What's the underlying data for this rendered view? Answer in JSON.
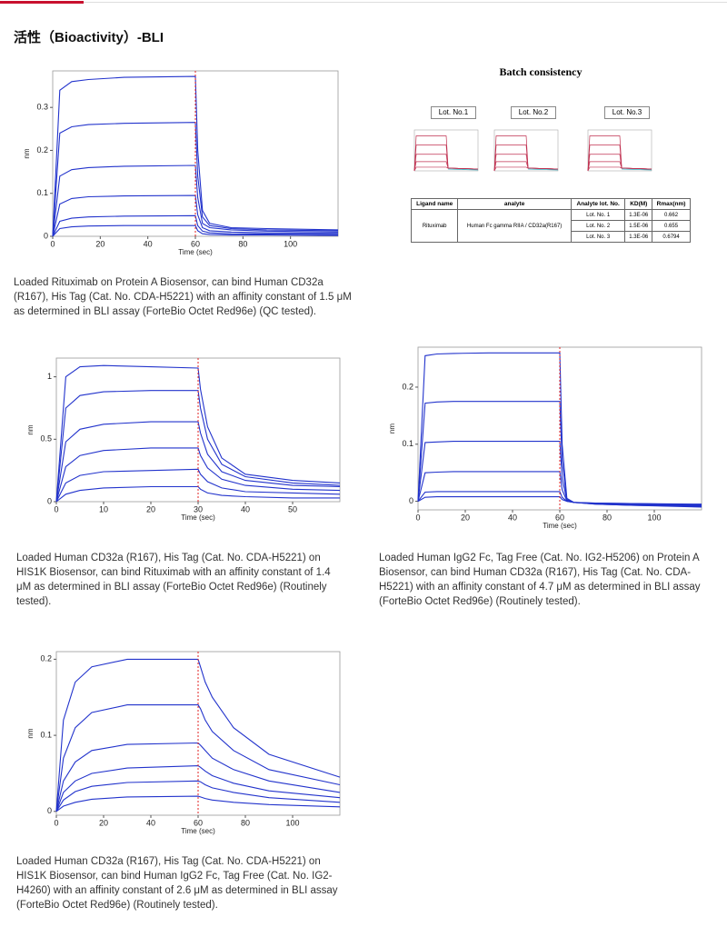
{
  "header": {
    "title": "活性（Bioactivity）-BLI"
  },
  "chart_data": [
    {
      "type": "line",
      "xlabel": "Time (sec)",
      "ylabel": "nm",
      "xlim": [
        0,
        120
      ],
      "ylim": [
        0,
        0.385
      ],
      "xticks": [
        0,
        20,
        40,
        60,
        80,
        100
      ],
      "yticks": [
        0,
        0.1,
        0.2,
        0.3
      ],
      "switch_x": 60,
      "color": "#2233cc",
      "x": [
        0,
        3,
        8,
        15,
        30,
        60,
        61,
        63,
        66,
        75,
        90,
        120
      ],
      "series": [
        {
          "values": [
            0,
            0.34,
            0.36,
            0.365,
            0.37,
            0.372,
            0.2,
            0.06,
            0.03,
            0.02,
            0.018,
            0.015
          ]
        },
        {
          "values": [
            0,
            0.24,
            0.255,
            0.26,
            0.263,
            0.265,
            0.14,
            0.045,
            0.025,
            0.018,
            0.015,
            0.013
          ]
        },
        {
          "values": [
            0,
            0.14,
            0.155,
            0.16,
            0.163,
            0.165,
            0.09,
            0.03,
            0.02,
            0.015,
            0.012,
            0.01
          ]
        },
        {
          "values": [
            0,
            0.075,
            0.088,
            0.092,
            0.094,
            0.095,
            0.05,
            0.02,
            0.013,
            0.01,
            0.008,
            0.007
          ]
        },
        {
          "values": [
            0,
            0.035,
            0.042,
            0.045,
            0.047,
            0.048,
            0.025,
            0.012,
            0.008,
            0.006,
            0.005,
            0.004
          ]
        },
        {
          "values": [
            0,
            0.018,
            0.022,
            0.024,
            0.025,
            0.025,
            0.013,
            0.006,
            0.004,
            0.003,
            0.003,
            0.002
          ]
        }
      ],
      "caption": "Loaded Rituximab on Protein A Biosensor, can bind Human CD32a (R167), His Tag (Cat. No. CDA-H5221) with an affinity constant of 1.5 μM as determined in BLI assay (ForteBio Octet Red96e) (QC tested)."
    },
    {
      "type": "line",
      "xlabel": "Time (sec)",
      "ylabel": "nm",
      "xlim": [
        0,
        60
      ],
      "ylim": [
        0,
        1.15
      ],
      "xticks": [
        0,
        10,
        20,
        30,
        40,
        50
      ],
      "yticks": [
        0,
        0.5,
        1
      ],
      "switch_x": 30,
      "color": "#2233cc",
      "x": [
        0,
        2,
        5,
        10,
        20,
        30,
        30.5,
        32,
        35,
        40,
        50,
        60
      ],
      "series": [
        {
          "values": [
            0,
            1.0,
            1.08,
            1.09,
            1.08,
            1.07,
            0.9,
            0.6,
            0.35,
            0.22,
            0.17,
            0.15
          ]
        },
        {
          "values": [
            0,
            0.75,
            0.85,
            0.88,
            0.89,
            0.89,
            0.75,
            0.5,
            0.3,
            0.2,
            0.15,
            0.13
          ]
        },
        {
          "values": [
            0,
            0.48,
            0.58,
            0.62,
            0.64,
            0.64,
            0.55,
            0.38,
            0.24,
            0.17,
            0.13,
            0.12
          ]
        },
        {
          "values": [
            0,
            0.28,
            0.37,
            0.41,
            0.43,
            0.43,
            0.37,
            0.27,
            0.18,
            0.13,
            0.1,
            0.09
          ]
        },
        {
          "values": [
            0,
            0.15,
            0.21,
            0.24,
            0.25,
            0.26,
            0.22,
            0.16,
            0.11,
            0.08,
            0.07,
            0.06
          ]
        },
        {
          "values": [
            0,
            0.06,
            0.09,
            0.11,
            0.12,
            0.12,
            0.1,
            0.07,
            0.05,
            0.04,
            0.03,
            0.03
          ]
        }
      ],
      "caption": "Loaded Human CD32a (R167), His Tag (Cat. No. CDA-H5221) on HIS1K Biosensor, can bind Rituximab with an affinity constant of 1.4 μM as determined in BLI assay (ForteBio Octet Red96e) (Routinely tested)."
    },
    {
      "type": "line",
      "xlabel": "Time (sec)",
      "ylabel": "nm",
      "xlim": [
        0,
        120
      ],
      "ylim": [
        -0.015,
        0.27
      ],
      "xticks": [
        0,
        20,
        40,
        60,
        80,
        100
      ],
      "yticks": [
        0,
        0.1,
        0.2
      ],
      "switch_x": 60,
      "color": "#2233cc",
      "x": [
        0,
        3,
        8,
        15,
        30,
        60,
        61,
        63,
        66,
        75,
        90,
        120
      ],
      "series": [
        {
          "values": [
            0,
            0.255,
            0.258,
            0.259,
            0.26,
            0.26,
            0.1,
            0.005,
            -0.002,
            -0.005,
            -0.007,
            -0.01
          ]
        },
        {
          "values": [
            0,
            0.172,
            0.174,
            0.175,
            0.175,
            0.175,
            0.07,
            0.003,
            -0.002,
            -0.005,
            -0.007,
            -0.009
          ]
        },
        {
          "values": [
            0,
            0.103,
            0.104,
            0.105,
            0.105,
            0.105,
            0.04,
            0.002,
            -0.002,
            -0.004,
            -0.006,
            -0.008
          ]
        },
        {
          "values": [
            0,
            0.05,
            0.051,
            0.052,
            0.052,
            0.052,
            0.02,
            0.001,
            -0.002,
            -0.004,
            -0.005,
            -0.007
          ]
        },
        {
          "values": [
            0,
            0.016,
            0.017,
            0.017,
            0.017,
            0.017,
            0.007,
            0,
            -0.002,
            -0.003,
            -0.004,
            -0.006
          ]
        },
        {
          "values": [
            0,
            0.007,
            0.008,
            0.008,
            0.008,
            0.008,
            0.003,
            0,
            -0.002,
            -0.003,
            -0.004,
            -0.005
          ]
        }
      ],
      "caption": "Loaded Human IgG2 Fc, Tag Free (Cat. No. IG2-H5206) on Protein A Biosensor, can bind Human CD32a (R167), His Tag (Cat. No. CDA-H5221) with an affinity constant of 4.7 μM as determined in BLI assay (ForteBio Octet Red96e) (Routinely tested)."
    },
    {
      "type": "line",
      "xlabel": "Time (sec)",
      "ylabel": "nm",
      "xlim": [
        0,
        120
      ],
      "ylim": [
        -0.005,
        0.21
      ],
      "xticks": [
        0,
        20,
        40,
        60,
        80,
        100
      ],
      "yticks": [
        0,
        0.1,
        0.2
      ],
      "switch_x": 60,
      "color": "#2233cc",
      "x": [
        0,
        3,
        8,
        15,
        30,
        60,
        61,
        63,
        66,
        75,
        90,
        120
      ],
      "series": [
        {
          "values": [
            0,
            0.12,
            0.17,
            0.19,
            0.2,
            0.2,
            0.19,
            0.17,
            0.15,
            0.11,
            0.075,
            0.045
          ]
        },
        {
          "values": [
            0,
            0.07,
            0.11,
            0.13,
            0.14,
            0.14,
            0.135,
            0.12,
            0.105,
            0.08,
            0.055,
            0.035
          ]
        },
        {
          "values": [
            0,
            0.04,
            0.065,
            0.08,
            0.088,
            0.09,
            0.087,
            0.08,
            0.07,
            0.055,
            0.04,
            0.025
          ]
        },
        {
          "values": [
            0,
            0.025,
            0.04,
            0.05,
            0.057,
            0.06,
            0.058,
            0.053,
            0.047,
            0.037,
            0.027,
            0.018
          ]
        },
        {
          "values": [
            0,
            0.015,
            0.026,
            0.033,
            0.038,
            0.04,
            0.039,
            0.035,
            0.031,
            0.025,
            0.018,
            0.012
          ]
        },
        {
          "values": [
            0,
            0.007,
            0.012,
            0.016,
            0.019,
            0.02,
            0.019,
            0.017,
            0.015,
            0.012,
            0.009,
            0.006
          ]
        }
      ],
      "caption": "Loaded Human CD32a (R167), His Tag (Cat. No. CDA-H5221) on HIS1K Biosensor, can bind Human IgG2 Fc, Tag Free (Cat. No. IG2-H4260) with an affinity constant of 2.6 μM as determined in BLI assay (ForteBio Octet Red96e) (Routinely tested)."
    }
  ],
  "batch": {
    "title": "Batch consistency",
    "lots": [
      "Lot. No.1",
      "Lot. No.2",
      "Lot. No.3"
    ],
    "table": {
      "headers": [
        "Ligand name",
        "analyte",
        "Analyte lot. No.",
        "KD(M)",
        "Rmax(nm)"
      ],
      "ligand": "Rituximab",
      "analyte": "Human Fc gamma RIIA / CD32a(R167)",
      "rows": [
        [
          "Lot. No. 1",
          "1.3E-06",
          "0.662"
        ],
        [
          "Lot. No. 2",
          "1.5E-06",
          "0.655"
        ],
        [
          "Lot. No. 3",
          "1.3E-06",
          "0.6794"
        ]
      ]
    }
  }
}
